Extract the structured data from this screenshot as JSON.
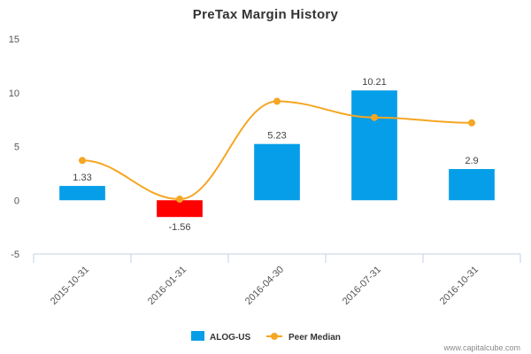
{
  "chart_data": {
    "type": "bar",
    "title": "PreTax Margin History",
    "categories": [
      "2015-10-31",
      "2016-01-31",
      "2016-04-30",
      "2016-07-31",
      "2016-10-31"
    ],
    "ylim": [
      -5,
      15
    ],
    "yticks": [
      -5,
      0,
      5,
      10,
      15
    ],
    "series": [
      {
        "name": "ALOG-US",
        "type": "bar",
        "values": [
          1.33,
          -1.56,
          5.23,
          10.21,
          2.9
        ],
        "labels": [
          "1.33",
          "-1.56",
          "5.23",
          "10.21",
          "2.9"
        ],
        "color": "#069ee8",
        "negative_color": "#ff0000"
      },
      {
        "name": "Peer Median",
        "type": "line",
        "values": [
          3.7,
          0.1,
          9.2,
          7.7,
          7.2
        ],
        "color": "#f5a623"
      }
    ],
    "grid": false,
    "legend_position": "bottom-center"
  },
  "credit": "www.capitalcube.com"
}
